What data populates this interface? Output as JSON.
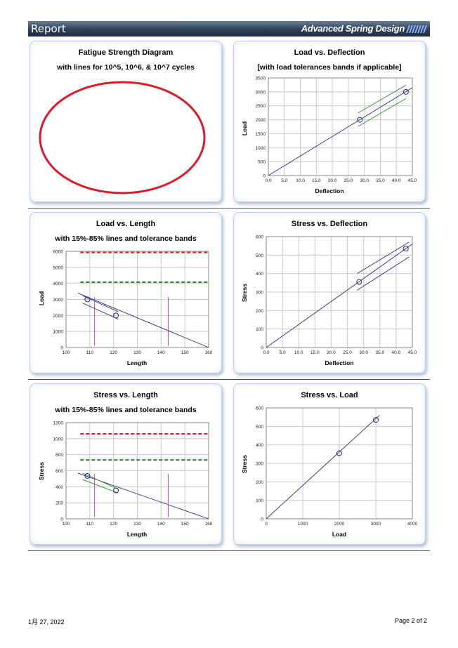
{
  "header": {
    "title": "Report",
    "brand": "Advanced Spring Design"
  },
  "footer": {
    "date": "1月 27, 2022",
    "page": "Page  2  of  2"
  },
  "charts": {
    "fatigue": {
      "title": "Fatigue Strength Diagram",
      "subtitle": "with lines for 10^5, 10^6, & 10^7 cycles"
    },
    "load_deflection": {
      "title": "Load vs. Deflection",
      "subtitle": "[with load tolerances bands if applicable]"
    },
    "load_length": {
      "title": "Load vs. Length",
      "subtitle": "with 15%-85% lines and tolerance bands"
    },
    "stress_deflection": {
      "title": "Stress vs. Deflection",
      "subtitle": ""
    },
    "stress_length": {
      "title": "Stress vs. Length",
      "subtitle": "with 15%-85% lines and tolerance bands"
    },
    "stress_load": {
      "title": "Stress vs. Load",
      "subtitle": ""
    }
  },
  "chart_data": [
    {
      "id": "load_deflection",
      "type": "line",
      "title": "Load vs. Deflection",
      "subtitle": "[with load tolerances bands if applicable]",
      "xlabel": "Deflection",
      "ylabel": "Load",
      "xlim": [
        0,
        45
      ],
      "ylim": [
        0,
        3500
      ],
      "xticks": [
        0,
        5,
        10,
        15,
        20,
        25,
        30,
        35,
        40,
        45
      ],
      "xtick_labels": [
        "0.0",
        "5.0",
        "10.0",
        "15.0",
        "20.0",
        "25.0",
        "30.0",
        "35.0",
        "40.0",
        "45.0"
      ],
      "yticks": [
        0,
        500,
        1000,
        1500,
        2000,
        2500,
        3000,
        3500
      ],
      "ytick_labels": [
        "0",
        "500",
        "1000",
        "1500",
        "2000",
        "2500",
        "3000",
        "3500"
      ],
      "lines": [
        {
          "color": "#2a2a8a",
          "points": [
            [
              0,
              0
            ],
            [
              45,
              3150
            ]
          ]
        },
        {
          "color": "#2e8b2e",
          "points": [
            [
              28,
              2240
            ],
            [
              43,
              3240
            ]
          ]
        },
        {
          "color": "#2e8b2e",
          "points": [
            [
              28,
              1760
            ],
            [
              43,
              2760
            ]
          ]
        }
      ],
      "markers": [
        [
          28.6,
          2000
        ],
        [
          43,
          3000
        ]
      ]
    },
    {
      "id": "load_length",
      "type": "line",
      "title": "Load vs. Length",
      "subtitle": "with 15%-85% lines and tolerance bands",
      "xlabel": "Length",
      "ylabel": "Load",
      "xlim": [
        100,
        160
      ],
      "ylim": [
        0,
        6000
      ],
      "xticks": [
        100,
        110,
        120,
        130,
        140,
        150,
        160
      ],
      "xtick_labels": [
        "100",
        "110",
        "120",
        "130",
        "140",
        "150",
        "160"
      ],
      "yticks": [
        0,
        1000,
        2000,
        3000,
        4000,
        5000,
        6000
      ],
      "ytick_labels": [
        "0",
        "1000",
        "2000",
        "3000",
        "4000",
        "5000",
        "6000"
      ],
      "lines": [
        {
          "color": "#2a2a8a",
          "points": [
            [
              105,
              3400
            ],
            [
              160,
              0
            ]
          ]
        },
        {
          "color": "#2a2a8a",
          "points": [
            [
              107,
              3230
            ],
            [
              122,
              2230
            ]
          ]
        },
        {
          "color": "#2a2a8a",
          "points": [
            [
              107,
              2770
            ],
            [
              122,
              1770
            ]
          ]
        },
        {
          "color": "#d030d0",
          "points": [
            [
              112,
              100
            ],
            [
              112,
              3150
            ]
          ]
        },
        {
          "color": "#d030d0",
          "points": [
            [
              143,
              100
            ],
            [
              143,
              3150
            ]
          ]
        }
      ],
      "dashed": [
        {
          "color": "#e02020",
          "y": 5930,
          "x": [
            106,
            160
          ]
        },
        {
          "color": "#207f20",
          "y": 4080,
          "x": [
            106,
            160
          ]
        }
      ],
      "markers": [
        [
          109,
          3000
        ],
        [
          121,
          2000
        ]
      ]
    },
    {
      "id": "stress_deflection",
      "type": "line",
      "title": "Stress vs. Deflection",
      "xlabel": "Deflection",
      "ylabel": "Stress",
      "xlim": [
        0,
        45
      ],
      "ylim": [
        0,
        600
      ],
      "xticks": [
        0,
        5,
        10,
        15,
        20,
        25,
        30,
        35,
        40,
        45
      ],
      "xtick_labels": [
        "0.0",
        "5.0",
        "10.0",
        "15.0",
        "20.0",
        "25.0",
        "30.0",
        "35.0",
        "40.0",
        "45.0"
      ],
      "yticks": [
        0,
        100,
        200,
        300,
        400,
        500,
        600
      ],
      "ytick_labels": [
        "0",
        "100",
        "200",
        "300",
        "400",
        "500",
        "600"
      ],
      "lines": [
        {
          "color": "#2a2a8a",
          "points": [
            [
              0,
              0
            ],
            [
              45,
              560
            ]
          ]
        },
        {
          "color": "#2a2a8a",
          "points": [
            [
              28,
              400
            ],
            [
              44,
              570
            ]
          ]
        },
        {
          "color": "#2a2a8a",
          "points": [
            [
              28,
              310
            ],
            [
              44,
              490
            ]
          ]
        }
      ],
      "markers": [
        [
          28.6,
          355
        ],
        [
          43,
          535
        ]
      ]
    },
    {
      "id": "stress_length",
      "type": "line",
      "title": "Stress vs. Length",
      "subtitle": "with 15%-85% lines and tolerance bands",
      "xlabel": "Length",
      "ylabel": "Stress",
      "xlim": [
        100,
        160
      ],
      "ylim": [
        0,
        1200
      ],
      "xticks": [
        100,
        110,
        120,
        130,
        140,
        150,
        160
      ],
      "xtick_labels": [
        "100",
        "110",
        "120",
        "130",
        "140",
        "150",
        "160"
      ],
      "yticks": [
        0,
        200,
        400,
        600,
        800,
        1000,
        1200
      ],
      "ytick_labels": [
        "0",
        "200",
        "400",
        "600",
        "800",
        "1000",
        "1200"
      ],
      "lines": [
        {
          "color": "#2a2a8a",
          "points": [
            [
              105,
              570
            ],
            [
              160,
              0
            ]
          ]
        },
        {
          "color": "#2e8b2e",
          "points": [
            [
              107,
              570
            ],
            [
              122,
              370
            ]
          ]
        },
        {
          "color": "#2e8b2e",
          "points": [
            [
              107,
              490
            ],
            [
              122,
              320
            ]
          ]
        },
        {
          "color": "#d030d0",
          "points": [
            [
              112,
              20
            ],
            [
              112,
              560
            ]
          ]
        },
        {
          "color": "#d030d0",
          "points": [
            [
              143,
              20
            ],
            [
              143,
              560
            ]
          ]
        }
      ],
      "dashed": [
        {
          "color": "#e02020",
          "y": 1060,
          "x": [
            106,
            160
          ]
        },
        {
          "color": "#207f20",
          "y": 735,
          "x": [
            106,
            160
          ]
        }
      ],
      "markers": [
        [
          109,
          535
        ],
        [
          121,
          355
        ]
      ]
    },
    {
      "id": "stress_load",
      "type": "line",
      "title": "Stress vs. Load",
      "xlabel": "Load",
      "ylabel": "Stress",
      "xlim": [
        0,
        4000
      ],
      "ylim": [
        0,
        600
      ],
      "xticks": [
        0,
        1000,
        2000,
        3000,
        4000
      ],
      "xtick_labels": [
        "0",
        "1000",
        "2000",
        "3000",
        "4000"
      ],
      "yticks": [
        0,
        100,
        200,
        300,
        400,
        500,
        600
      ],
      "ytick_labels": [
        "0",
        "100",
        "200",
        "300",
        "400",
        "500",
        "600"
      ],
      "lines": [
        {
          "color": "#2a2a8a",
          "points": [
            [
              0,
              0
            ],
            [
              3100,
              560
            ]
          ]
        }
      ],
      "markers": [
        [
          2000,
          355
        ],
        [
          3000,
          535
        ]
      ]
    }
  ]
}
